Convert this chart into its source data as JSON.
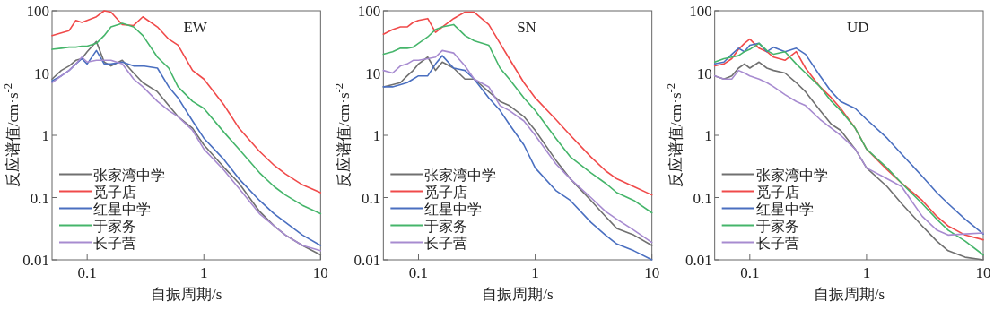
{
  "chart_data": [
    {
      "type": "line",
      "title": "EW",
      "xlabel": "自振周期/s",
      "ylabel": "反应谱值/cm·s$^{-2}$",
      "log": "xy",
      "legend": "bottom left",
      "xlim": [
        0.05,
        10
      ],
      "ylim": [
        0.01,
        100
      ],
      "xticks": [
        0.1,
        1,
        10
      ],
      "yticks": [
        0.01,
        0.1,
        1,
        10,
        100
      ],
      "x": [
        0.05,
        0.06,
        0.07,
        0.08,
        0.09,
        0.1,
        0.12,
        0.14,
        0.16,
        0.2,
        0.25,
        0.3,
        0.4,
        0.5,
        0.6,
        0.8,
        1,
        1.5,
        2,
        3,
        4,
        5,
        7,
        10
      ],
      "series": [
        {
          "name": "张家湾中学",
          "color": "#707070",
          "values": [
            8,
            11,
            13,
            16,
            17,
            22,
            32,
            15,
            13,
            16,
            10,
            7,
            5,
            3,
            2,
            1.3,
            0.7,
            0.3,
            0.17,
            0.06,
            0.035,
            0.025,
            0.017,
            0.012
          ]
        },
        {
          "name": "觅子店",
          "color": "#f04a4a",
          "values": [
            40,
            44,
            48,
            70,
            65,
            70,
            80,
            100,
            95,
            60,
            58,
            80,
            55,
            35,
            28,
            11,
            8,
            3,
            1.3,
            0.55,
            0.33,
            0.24,
            0.16,
            0.12
          ]
        },
        {
          "name": "红星中学",
          "color": "#4a6fc0",
          "values": [
            7.5,
            9,
            11,
            14,
            17,
            14,
            23,
            14,
            14,
            15,
            13,
            13,
            12,
            6,
            4,
            1.7,
            0.9,
            0.4,
            0.2,
            0.09,
            0.055,
            0.04,
            0.025,
            0.017
          ]
        },
        {
          "name": "于家务",
          "color": "#45b56a",
          "values": [
            24,
            25,
            26,
            26,
            27,
            27,
            30,
            40,
            55,
            63,
            55,
            40,
            18,
            12,
            6,
            3.5,
            2.7,
            1.1,
            0.6,
            0.25,
            0.15,
            0.11,
            0.075,
            0.055
          ]
        },
        {
          "name": "长子营",
          "color": "#a78bd0",
          "values": [
            7,
            9,
            11,
            14,
            18,
            15,
            16,
            16,
            16,
            14,
            8,
            6,
            3.5,
            2.5,
            2,
            1.2,
            0.6,
            0.27,
            0.14,
            0.055,
            0.035,
            0.025,
            0.017,
            0.014
          ]
        }
      ]
    },
    {
      "type": "line",
      "title": "SN",
      "xlabel": "自振周期/s",
      "ylabel": "反应谱值/cm·s$^{-2}$",
      "log": "xy",
      "legend": "bottom left",
      "xlim": [
        0.05,
        10
      ],
      "ylim": [
        0.01,
        100
      ],
      "xticks": [
        0.1,
        1,
        10
      ],
      "yticks": [
        0.01,
        0.1,
        1,
        10,
        100
      ],
      "x": [
        0.05,
        0.06,
        0.07,
        0.08,
        0.09,
        0.1,
        0.12,
        0.14,
        0.16,
        0.2,
        0.25,
        0.3,
        0.4,
        0.5,
        0.6,
        0.8,
        1,
        1.5,
        2,
        3,
        4,
        5,
        7,
        10
      ],
      "series": [
        {
          "name": "张家湾中学",
          "color": "#707070",
          "values": [
            6,
            6.5,
            7,
            9,
            11,
            14,
            18,
            11,
            15,
            12,
            8,
            8,
            5,
            3.5,
            3,
            2,
            1.2,
            0.4,
            0.2,
            0.09,
            0.05,
            0.032,
            0.025,
            0.017
          ]
        },
        {
          "name": "觅子店",
          "color": "#f04a4a",
          "values": [
            42,
            50,
            55,
            55,
            65,
            70,
            75,
            45,
            55,
            75,
            95,
            95,
            60,
            30,
            17,
            7,
            4,
            1.8,
            1,
            0.45,
            0.27,
            0.2,
            0.15,
            0.11
          ]
        },
        {
          "name": "红星中学",
          "color": "#4a6fc0",
          "values": [
            6,
            6,
            6.5,
            7,
            8,
            9,
            9,
            14,
            19,
            12,
            11,
            8,
            4,
            2.5,
            1.5,
            0.7,
            0.3,
            0.13,
            0.09,
            0.04,
            0.025,
            0.018,
            0.014,
            0.01
          ]
        },
        {
          "name": "于家务",
          "color": "#45b56a",
          "values": [
            20,
            22,
            25,
            25,
            26,
            30,
            38,
            50,
            55,
            60,
            40,
            33,
            28,
            12,
            8,
            4,
            2.5,
            0.9,
            0.45,
            0.25,
            0.17,
            0.12,
            0.09,
            0.057
          ]
        },
        {
          "name": "长子营",
          "color": "#a78bd0",
          "values": [
            11,
            10,
            13,
            14,
            16,
            16,
            17,
            18,
            23,
            21,
            13,
            8,
            6,
            3,
            2.5,
            1.7,
            1,
            0.35,
            0.2,
            0.1,
            0.06,
            0.045,
            0.03,
            0.019
          ]
        }
      ]
    },
    {
      "type": "line",
      "title": "UD",
      "xlabel": "自振周期/s",
      "ylabel": "反应谱值/cm·s$^{-2}$",
      "log": "xy",
      "legend": "bottom left",
      "xlim": [
        0.05,
        10
      ],
      "ylim": [
        0.01,
        100
      ],
      "xticks": [
        0.1,
        1,
        10
      ],
      "yticks": [
        0.01,
        0.1,
        1,
        10,
        100
      ],
      "x": [
        0.05,
        0.06,
        0.07,
        0.08,
        0.09,
        0.1,
        0.12,
        0.14,
        0.16,
        0.2,
        0.25,
        0.3,
        0.4,
        0.5,
        0.6,
        0.8,
        1,
        1.5,
        2,
        3,
        4,
        5,
        7,
        10
      ],
      "series": [
        {
          "name": "张家湾中学",
          "color": "#707070",
          "values": [
            9,
            8,
            9,
            12,
            14,
            12,
            15,
            12,
            11,
            10,
            7,
            5,
            2.5,
            1.5,
            1.2,
            0.6,
            0.3,
            0.15,
            0.08,
            0.035,
            0.02,
            0.014,
            0.011,
            0.01
          ]
        },
        {
          "name": "觅子店",
          "color": "#f04a4a",
          "values": [
            13,
            14,
            17,
            24,
            30,
            35,
            25,
            22,
            18,
            16,
            22,
            12,
            6,
            4,
            2.7,
            1.3,
            0.6,
            0.28,
            0.17,
            0.09,
            0.05,
            0.035,
            0.025,
            0.021
          ]
        },
        {
          "name": "红星中学",
          "color": "#4a6fc0",
          "values": [
            14,
            15,
            20,
            25,
            22,
            28,
            30,
            22,
            26,
            22,
            25,
            20,
            9,
            5,
            3.5,
            2.7,
            1.8,
            0.9,
            0.5,
            0.22,
            0.12,
            0.08,
            0.045,
            0.026
          ]
        },
        {
          "name": "于家务",
          "color": "#45b56a",
          "values": [
            15,
            17,
            18,
            19,
            22,
            24,
            30,
            23,
            20,
            22,
            14,
            10,
            6,
            3.5,
            2.5,
            1.3,
            0.6,
            0.3,
            0.17,
            0.08,
            0.045,
            0.03,
            0.02,
            0.012
          ]
        },
        {
          "name": "长子营",
          "color": "#a78bd0",
          "values": [
            9,
            8,
            8,
            11,
            10,
            9,
            8,
            7,
            6,
            4.5,
            3.5,
            3,
            1.8,
            1.3,
            1,
            0.6,
            0.3,
            0.2,
            0.15,
            0.05,
            0.03,
            0.025,
            0.026,
            0.027
          ]
        }
      ]
    }
  ]
}
